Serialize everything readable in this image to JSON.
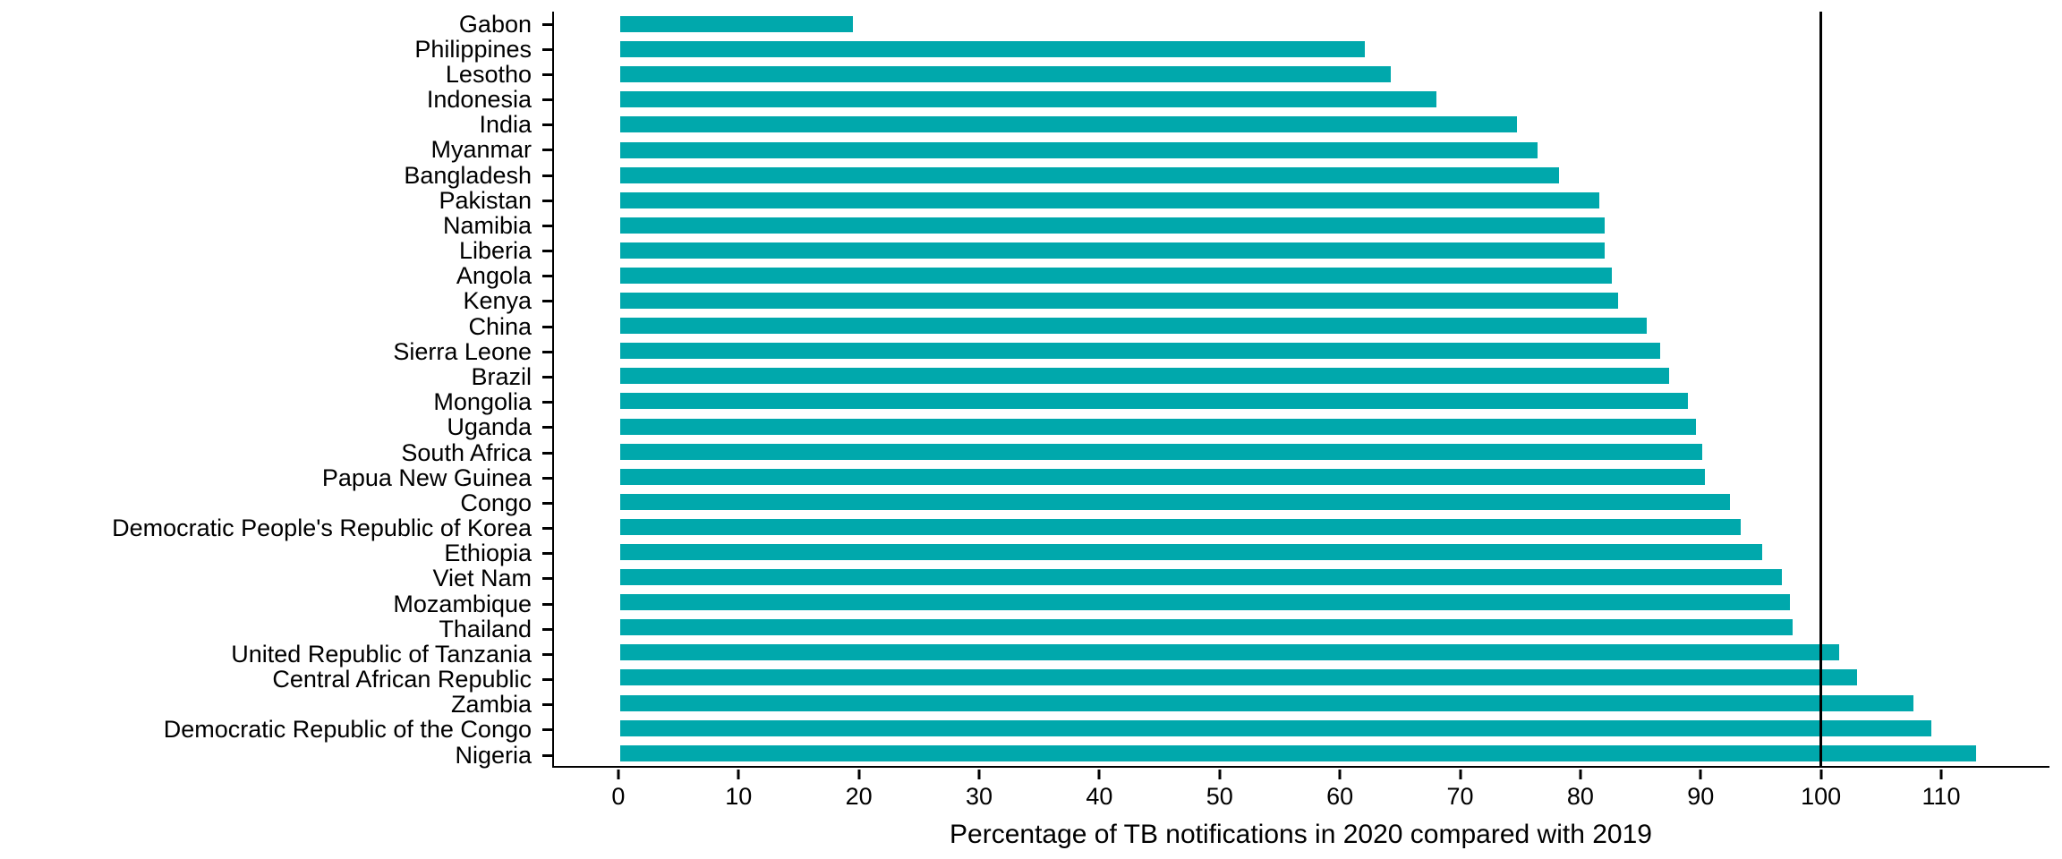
{
  "chart_data": {
    "type": "bar",
    "orientation": "horizontal",
    "title": "",
    "xlabel": "Percentage of TB notifications in 2020 compared with 2019",
    "ylabel": "",
    "categories": [
      "Gabon",
      "Philippines",
      "Lesotho",
      "Indonesia",
      "India",
      "Myanmar",
      "Bangladesh",
      "Pakistan",
      "Namibia",
      "Liberia",
      "Angola",
      "Kenya",
      "China",
      "Sierra Leone",
      "Brazil",
      "Mongolia",
      "Uganda",
      "South Africa",
      "Papua New Guinea",
      "Congo",
      "Democratic People's Republic of Korea",
      "Ethiopia",
      "Viet Nam",
      "Mozambique",
      "Thailand",
      "United Republic of Tanzania",
      "Central African Republic",
      "Zambia",
      "Democratic Republic of the Congo",
      "Nigeria"
    ],
    "values": [
      19.4,
      62.0,
      64.2,
      68.0,
      74.7,
      76.4,
      78.2,
      81.5,
      82.0,
      82.0,
      82.6,
      83.1,
      85.5,
      86.6,
      87.3,
      88.9,
      89.6,
      90.1,
      90.3,
      92.4,
      93.3,
      95.1,
      96.7,
      97.4,
      97.6,
      101.5,
      103.0,
      107.7,
      109.2,
      112.9
    ],
    "xticks": [
      0,
      10,
      20,
      30,
      40,
      50,
      60,
      70,
      80,
      90,
      100,
      110
    ],
    "xlim": [
      -5.5,
      119
    ],
    "reference_line_x": 100,
    "bar_color": "#00A8AC",
    "axis_color": "#000000",
    "grid": false,
    "legend": "none"
  }
}
